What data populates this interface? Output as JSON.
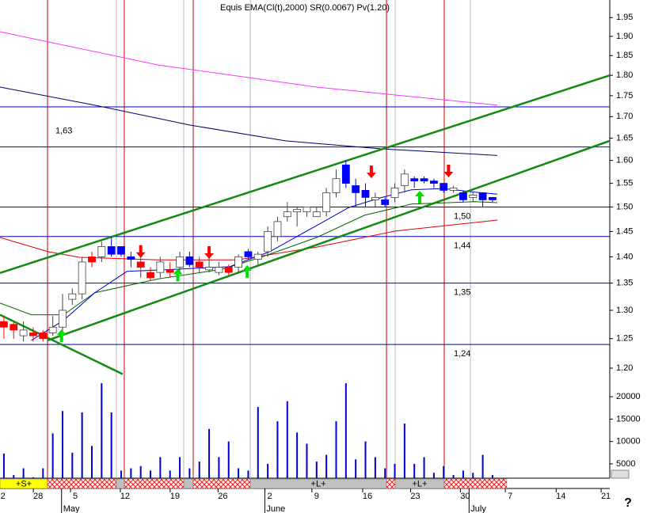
{
  "chart_data": [
    {
      "type": "candlestick",
      "title": "Equis EMA(Cl(t),2000) SR(0.0067) Pv(1.20)",
      "xlim": [
        -0.4,
        62
      ],
      "ylim": [
        1.183,
        1.998
      ],
      "log_scale": true,
      "yticks": [
        {
          "value": 1.2,
          "label": "1.20"
        },
        1.25,
        {
          "value": 1.3,
          "label": "1.30"
        },
        1.35,
        {
          "value": 1.4,
          "label": "1.40"
        },
        1.45,
        {
          "value": 1.5,
          "label": "1.50"
        },
        1.55,
        {
          "value": 1.6,
          "label": "1.60"
        },
        1.65,
        {
          "value": 1.7,
          "label": "1.70"
        },
        1.75,
        {
          "value": 1.8,
          "label": "1.80"
        },
        1.85,
        {
          "value": 1.9,
          "label": "1.90"
        },
        1.95
      ],
      "x": [
        0,
        1,
        2,
        3,
        4,
        5,
        6,
        7,
        8,
        9,
        10,
        11,
        12,
        13,
        14,
        15,
        16,
        17,
        18,
        19,
        20,
        21,
        22,
        23,
        24,
        25,
        26,
        27,
        28,
        29,
        30,
        31,
        32,
        33,
        34,
        35,
        36,
        37,
        38,
        39,
        40,
        41,
        42,
        43,
        44,
        45,
        46,
        47,
        48,
        49,
        50
      ],
      "open": [
        1.28,
        1.275,
        1.255,
        1.26,
        1.26,
        1.26,
        1.27,
        1.32,
        1.33,
        1.4,
        1.4,
        1.42,
        1.42,
        1.4,
        1.39,
        1.37,
        1.37,
        1.375,
        1.38,
        1.4,
        1.39,
        1.375,
        1.37,
        1.38,
        1.38,
        1.41,
        1.395,
        1.41,
        1.44,
        1.48,
        1.49,
        1.49,
        1.48,
        1.49,
        1.53,
        1.59,
        1.545,
        1.535,
        1.515,
        1.515,
        1.52,
        1.545,
        1.56,
        1.56,
        1.555,
        1.55,
        1.535,
        1.53,
        1.52,
        1.53,
        1.52
      ],
      "high": [
        1.29,
        1.28,
        1.28,
        1.27,
        1.265,
        1.29,
        1.33,
        1.34,
        1.4,
        1.41,
        1.43,
        1.44,
        1.42,
        1.41,
        1.4,
        1.38,
        1.4,
        1.39,
        1.41,
        1.41,
        1.4,
        1.4,
        1.39,
        1.385,
        1.405,
        1.415,
        1.41,
        1.46,
        1.48,
        1.51,
        1.5,
        1.5,
        1.5,
        1.54,
        1.58,
        1.6,
        1.56,
        1.55,
        1.53,
        1.52,
        1.55,
        1.58,
        1.565,
        1.565,
        1.56,
        1.55,
        1.545,
        1.535,
        1.53,
        1.53,
        1.52
      ],
      "low": [
        1.25,
        1.25,
        1.245,
        1.245,
        1.245,
        1.255,
        1.26,
        1.31,
        1.32,
        1.38,
        1.39,
        1.4,
        1.4,
        1.38,
        1.36,
        1.355,
        1.36,
        1.36,
        1.37,
        1.38,
        1.37,
        1.37,
        1.365,
        1.365,
        1.37,
        1.395,
        1.385,
        1.4,
        1.43,
        1.47,
        1.46,
        1.48,
        1.48,
        1.48,
        1.52,
        1.54,
        1.5,
        1.5,
        1.5,
        1.5,
        1.51,
        1.53,
        1.54,
        1.55,
        1.54,
        1.53,
        1.53,
        1.51,
        1.51,
        1.5,
        1.51
      ],
      "close": [
        1.27,
        1.265,
        1.265,
        1.255,
        1.25,
        1.27,
        1.3,
        1.33,
        1.39,
        1.39,
        1.42,
        1.405,
        1.405,
        1.395,
        1.38,
        1.36,
        1.39,
        1.37,
        1.4,
        1.385,
        1.38,
        1.38,
        1.38,
        1.37,
        1.4,
        1.4,
        1.405,
        1.45,
        1.47,
        1.49,
        1.495,
        1.5,
        1.49,
        1.53,
        1.56,
        1.55,
        1.53,
        1.52,
        1.52,
        1.505,
        1.54,
        1.57,
        1.555,
        1.555,
        1.55,
        1.535,
        1.54,
        1.515,
        1.525,
        1.515,
        1.515
      ],
      "colors": [
        "#ff0000",
        "#ff0000",
        "#ffffff",
        "#ff0000",
        "#ff0000",
        "#ffffff",
        "#ffffff",
        "#ffffff",
        "#ffffff",
        "#ff0000",
        "#ffffff",
        "#0000ff",
        "#0000ff",
        "#0000ff",
        "#ff0000",
        "#ff0000",
        "#ffffff",
        "#ff0000",
        "#ffffff",
        "#0000ff",
        "#ff0000",
        "#ffffff",
        "#ffffff",
        "#ff0000",
        "#ffffff",
        "#0000ff",
        "#ffffff",
        "#ffffff",
        "#ffffff",
        "#ffffff",
        "#ffffff",
        "#ffffff",
        "#ffffff",
        "#ffffff",
        "#ffffff",
        "#0000ff",
        "#0000ff",
        "#0000ff",
        "#ffffff",
        "#0000ff",
        "#ffffff",
        "#ffffff",
        "#0000ff",
        "#0000ff",
        "#0000ff",
        "#0000ff",
        "#ffffff",
        "#0000ff",
        "#ffffff",
        "#0000ff",
        "#0000ff"
      ],
      "lines": [
        {
          "color": "#ff33ff",
          "x": [
            -0.4,
            15.8,
            32,
            50.5
          ],
          "values": [
            1.912,
            1.826,
            1.771,
            1.727
          ]
        },
        {
          "color": "#000066",
          "x": [
            -0.4,
            9.3,
            19.1,
            28.8,
            38.5,
            50.5
          ],
          "values": [
            1.771,
            1.727,
            1.68,
            1.644,
            1.626,
            1.611
          ]
        },
        {
          "color": "#dd0000",
          "x": [
            -0.4,
            4.5,
            7.7,
            15.8,
            23.9,
            32,
            40.1,
            50.5
          ],
          "values": [
            1.438,
            1.41,
            1.399,
            1.394,
            1.394,
            1.419,
            1.451,
            1.473
          ]
        },
        {
          "color": "#006600",
          "x": [
            -0.4,
            2.8,
            6.1,
            9.3,
            15.8,
            22.3,
            26.3,
            32,
            36.9,
            41.7,
            48.2,
            50.5
          ],
          "values": [
            1.313,
            1.292,
            1.292,
            1.332,
            1.358,
            1.376,
            1.399,
            1.438,
            1.483,
            1.506,
            1.511,
            1.509
          ]
        },
        {
          "color": "#0000cc",
          "x": [
            2.8,
            6.1,
            9.3,
            12.6,
            17.4,
            23.1,
            27.2,
            32,
            35.3,
            38.5,
            41.7,
            45,
            48.2,
            50.5
          ],
          "values": [
            1.247,
            1.282,
            1.332,
            1.372,
            1.376,
            1.381,
            1.41,
            1.462,
            1.499,
            1.519,
            1.536,
            1.539,
            1.531,
            1.527
          ]
        }
      ],
      "levels": {
        "color": "#0000cc",
        "values": [
          1.723,
          1.63,
          1.5,
          1.44,
          1.35,
          1.24
        ],
        "value_labels": [
          null,
          "1,63",
          "1,50",
          "1,44",
          "1,35",
          "1,24"
        ]
      },
      "trendlines": {
        "color": "#138a13",
        "lines": [
          {
            "x": [
              -0.4,
              62
            ],
            "values": [
              1.369,
              1.8
            ]
          },
          {
            "x": [
              4.46,
              62
            ],
            "values": [
              1.247,
              1.644
            ]
          },
          {
            "x": [
              -0.4,
              12.16
            ],
            "values": [
              1.292,
              1.19
            ]
          }
        ]
      },
      "signals": [
        {
          "color": "#ff0000",
          "direction": "down",
          "x": [
            14,
            21,
            37.6,
            45.5
          ],
          "values": [
            1.398,
            1.396,
            1.561,
            1.563
          ]
        },
        {
          "color": "#00dd00",
          "direction": "up",
          "x": [
            5.9,
            17.8,
            24.9,
            42.55
          ],
          "values": [
            1.266,
            1.377,
            1.384,
            1.534
          ]
        }
      ],
      "event_lines": [
        {
          "color": "#cc0000",
          "x": [
            4.46,
            12.32,
            19.37,
            39.15,
            45.06
          ]
        },
        {
          "color": "#b8b8b8",
          "x": [
            11.51,
            18.4,
            25.21,
            40.04,
            47.74
          ]
        }
      ]
    },
    {
      "type": "bar",
      "xlim": [
        -0.4,
        62
      ],
      "ylim": [
        1800,
        25500
      ],
      "yticks": [
        5000,
        10000,
        15000,
        20000
      ],
      "x": [
        0,
        1,
        2,
        3,
        4,
        5,
        6,
        7,
        8,
        9,
        10,
        11,
        12,
        13,
        14,
        15,
        16,
        17,
        18,
        19,
        20,
        21,
        22,
        23,
        24,
        25,
        26,
        27,
        28,
        29,
        30,
        31,
        32,
        33,
        34,
        35,
        36,
        37,
        38,
        39,
        40,
        41,
        42,
        43,
        44,
        45,
        46,
        47,
        48,
        49,
        50
      ],
      "values": [
        7300,
        2500,
        4000,
        2000,
        4000,
        11800,
        16800,
        7500,
        16500,
        9000,
        23000,
        16500,
        3500,
        4000,
        4500,
        3500,
        6500,
        3500,
        6500,
        4000,
        5500,
        12800,
        6500,
        10000,
        4000,
        3500,
        17700,
        5000,
        14500,
        19000,
        12000,
        9500,
        5500,
        7000,
        14500,
        23000,
        6000,
        10000,
        6500,
        4000,
        5000,
        14000,
        5000,
        6500,
        3000,
        4500,
        2500,
        3500,
        3000,
        7000,
        2500
      ],
      "color": "#0000cc",
      "xticks": [
        {
          "value": -0.1,
          "label": "2"
        },
        {
          "value": 3.5,
          "label": "28"
        },
        {
          "value": 7.3,
          "label": "5"
        },
        {
          "value": 12.4,
          "label": "12"
        },
        {
          "value": 17.5,
          "label": "19"
        },
        {
          "value": 22.4,
          "label": "26"
        },
        {
          "value": 27.2,
          "label": "2"
        },
        {
          "value": 32,
          "label": "9"
        },
        {
          "value": 37.2,
          "label": "16"
        },
        {
          "value": 42.1,
          "label": "23"
        },
        {
          "value": 47.2,
          "label": "30"
        },
        {
          "value": 51.8,
          "label": "7"
        },
        {
          "value": 57,
          "label": "14"
        },
        {
          "value": 61.6,
          "label": "21"
        }
      ],
      "month_ticks": [
        {
          "value": 5.9,
          "label": "May"
        },
        {
          "value": 26.7,
          "label": "June"
        },
        {
          "value": 47.6,
          "label": "July"
        }
      ],
      "bands": [
        {
          "from": -0.4,
          "to": 4.46,
          "color": "#ffff00",
          "label": "+S+"
        },
        {
          "from": 4.46,
          "to": 11.51,
          "color": "#ff0000",
          "pattern": "hatch"
        },
        {
          "from": 11.51,
          "to": 12.32,
          "color": "#c0c0c0"
        },
        {
          "from": 12.32,
          "to": 18.4,
          "color": "#ff0000",
          "pattern": "hatch"
        },
        {
          "from": 18.4,
          "to": 19.37,
          "color": "#c0c0c0"
        },
        {
          "from": 19.37,
          "to": 25.21,
          "color": "#ff0000",
          "pattern": "hatch"
        },
        {
          "from": 25.21,
          "to": 39.15,
          "color": "#c0c0c0",
          "label": "+L+"
        },
        {
          "from": 39.15,
          "to": 40.04,
          "color": "#ff0000",
          "pattern": "hatch"
        },
        {
          "from": 40.04,
          "to": 45.06,
          "color": "#c0c0c0",
          "label": "+L+"
        },
        {
          "from": 45.06,
          "to": 51.46,
          "color": "#ff0000",
          "pattern": "hatch"
        }
      ]
    }
  ],
  "ui": {
    "help_label": "?"
  }
}
